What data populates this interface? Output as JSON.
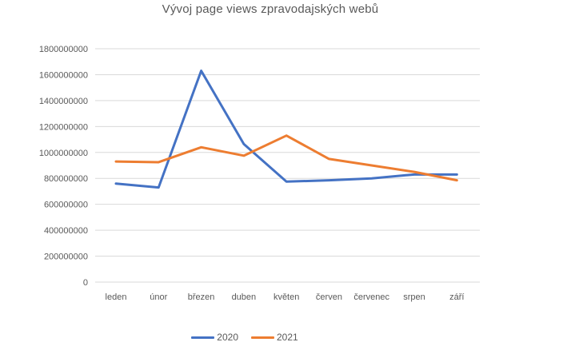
{
  "title": "Vývoj page views zpravodajských webů",
  "chart_data": {
    "type": "line",
    "title": "Vývoj page views zpravodajských webů",
    "xlabel": "",
    "ylabel": "",
    "categories": [
      "leden",
      "únor",
      "březen",
      "duben",
      "květen",
      "červen",
      "červenec",
      "srpen",
      "září"
    ],
    "series": [
      {
        "name": "2020",
        "color": "#4472C4",
        "values": [
          760000000,
          730000000,
          1630000000,
          1065000000,
          775000000,
          785000000,
          800000000,
          830000000,
          830000000
        ]
      },
      {
        "name": "2021",
        "color": "#ED7D31",
        "values": [
          930000000,
          925000000,
          1040000000,
          975000000,
          1130000000,
          950000000,
          900000000,
          850000000,
          785000000
        ]
      }
    ],
    "ylim": [
      0,
      1800000000
    ],
    "yticks": [
      0,
      200000000,
      400000000,
      600000000,
      800000000,
      1000000000,
      1200000000,
      1400000000,
      1600000000,
      1800000000
    ],
    "grid": true,
    "legend_position": "bottom"
  },
  "colors": {
    "background": "#FFFFFF",
    "text": "#595959",
    "gridline": "#D9D9D9",
    "series_2020": "#4472C4",
    "series_2021": "#ED7D31"
  }
}
